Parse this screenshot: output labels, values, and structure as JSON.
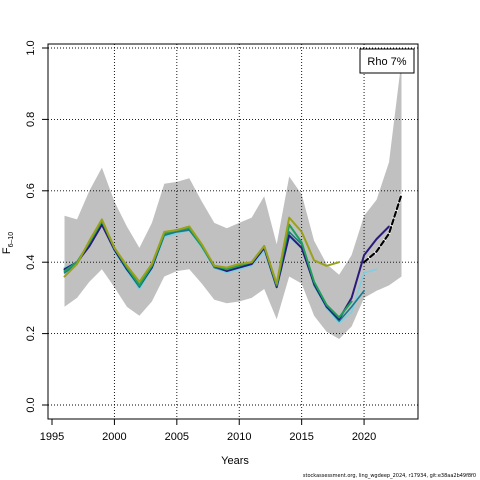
{
  "chart_data": {
    "type": "line",
    "xlabel": "Years",
    "ylabel_main": "F",
    "ylabel_sub": "6–10",
    "xlim": [
      1995,
      2024
    ],
    "ylim": [
      0,
      1.0
    ],
    "xticks": [
      1995,
      2000,
      2005,
      2010,
      2015,
      2020
    ],
    "yticks": [
      "0.0",
      "0.2",
      "0.4",
      "0.6",
      "0.8",
      "1.0"
    ],
    "grid": true,
    "legend_text": "Rho 7%",
    "legend_position": "top-right",
    "footnote": "stockassessment.org, ling_wgdeep_2024, r17934, git:e38aa2b49f8f0",
    "confidence_band": {
      "x": [
        1996,
        1997,
        1998,
        1999,
        2000,
        2001,
        2002,
        2003,
        2004,
        2005,
        2006,
        2007,
        2008,
        2009,
        2010,
        2011,
        2012,
        2013,
        2014,
        2015,
        2016,
        2017,
        2018,
        2019,
        2020,
        2021,
        2022,
        2023
      ],
      "upper": [
        0.53,
        0.52,
        0.6,
        0.665,
        0.57,
        0.5,
        0.44,
        0.51,
        0.62,
        0.625,
        0.635,
        0.57,
        0.51,
        0.495,
        0.51,
        0.525,
        0.585,
        0.45,
        0.64,
        0.59,
        0.46,
        0.395,
        0.365,
        0.42,
        0.53,
        0.575,
        0.68,
        0.965
      ],
      "lower": [
        0.275,
        0.3,
        0.345,
        0.38,
        0.33,
        0.275,
        0.25,
        0.29,
        0.36,
        0.375,
        0.38,
        0.34,
        0.295,
        0.285,
        0.29,
        0.3,
        0.325,
        0.24,
        0.36,
        0.34,
        0.25,
        0.205,
        0.185,
        0.22,
        0.3,
        0.32,
        0.335,
        0.36
      ]
    },
    "series": [
      {
        "color": "#7ecfe0",
        "width": 1.6,
        "dash": "",
        "x": [
          1996,
          1997,
          1998,
          1999,
          2000,
          2001,
          2002,
          2003,
          2004,
          2005,
          2006,
          2007,
          2008,
          2009,
          2010,
          2011,
          2012,
          2013,
          2014,
          2015,
          2016,
          2017,
          2018,
          2019,
          2020,
          2021
        ],
        "y": [
          0.385,
          0.4,
          0.445,
          0.51,
          0.43,
          0.375,
          0.325,
          0.38,
          0.47,
          0.48,
          0.49,
          0.44,
          0.385,
          0.37,
          0.38,
          0.39,
          0.43,
          0.33,
          0.47,
          0.44,
          0.335,
          0.27,
          0.23,
          0.26,
          0.37,
          0.38
        ]
      },
      {
        "color": "#1a7a8c",
        "width": 1.6,
        "dash": "",
        "x": [
          1996,
          1997,
          1998,
          1999,
          2000,
          2001,
          2002,
          2003,
          2004,
          2005,
          2006,
          2007,
          2008,
          2009,
          2010,
          2011,
          2012,
          2013,
          2014,
          2015,
          2016,
          2017,
          2018,
          2019,
          2020
        ],
        "y": [
          0.37,
          0.395,
          0.45,
          0.51,
          0.435,
          0.38,
          0.33,
          0.385,
          0.475,
          0.485,
          0.49,
          0.445,
          0.385,
          0.375,
          0.385,
          0.395,
          0.44,
          0.33,
          0.485,
          0.45,
          0.335,
          0.275,
          0.235,
          0.275,
          0.32
        ]
      },
      {
        "color": "#2a1a7a",
        "width": 2.0,
        "dash": "",
        "x": [
          1996,
          1997,
          1998,
          1999,
          2000,
          2001,
          2002,
          2003,
          2004,
          2005,
          2006,
          2007,
          2008,
          2009,
          2010,
          2011,
          2012,
          2013,
          2014,
          2015,
          2016,
          2017,
          2018,
          2019,
          2020,
          2021,
          2022
        ],
        "y": [
          0.38,
          0.4,
          0.445,
          0.505,
          0.435,
          0.38,
          0.335,
          0.385,
          0.48,
          0.49,
          0.495,
          0.445,
          0.39,
          0.375,
          0.385,
          0.395,
          0.44,
          0.33,
          0.475,
          0.44,
          0.34,
          0.275,
          0.24,
          0.3,
          0.42,
          0.465,
          0.5
        ]
      },
      {
        "color": "#1f9e5a",
        "width": 2.0,
        "dash": "",
        "x": [
          1996,
          1997,
          1998,
          1999,
          2000,
          2001,
          2002,
          2003,
          2004,
          2005,
          2006,
          2007,
          2008,
          2009,
          2010,
          2011,
          2012,
          2013,
          2014,
          2015,
          2016,
          2017,
          2018,
          2019
        ],
        "y": [
          0.375,
          0.4,
          0.455,
          0.515,
          0.44,
          0.385,
          0.335,
          0.39,
          0.48,
          0.49,
          0.495,
          0.445,
          0.39,
          0.38,
          0.39,
          0.4,
          0.445,
          0.335,
          0.505,
          0.455,
          0.345,
          0.28,
          0.245,
          0.29
        ]
      },
      {
        "color": "#9aa11a",
        "width": 2.0,
        "dash": "",
        "x": [
          1996,
          1997,
          1998,
          1999,
          2000,
          2001,
          2002,
          2003,
          2004,
          2005,
          2006,
          2007,
          2008,
          2009,
          2010,
          2011,
          2012,
          2013,
          2014,
          2015,
          2016,
          2017,
          2018
        ],
        "y": [
          0.36,
          0.395,
          0.46,
          0.52,
          0.44,
          0.39,
          0.345,
          0.395,
          0.485,
          0.49,
          0.5,
          0.45,
          0.39,
          0.385,
          0.395,
          0.4,
          0.445,
          0.34,
          0.525,
          0.485,
          0.405,
          0.39,
          0.4
        ]
      },
      {
        "color": "#000000",
        "width": 2.2,
        "dash": "5,3",
        "x": [
          2020,
          2021,
          2022,
          2023
        ],
        "y": [
          0.4,
          0.43,
          0.48,
          0.59
        ]
      }
    ]
  }
}
